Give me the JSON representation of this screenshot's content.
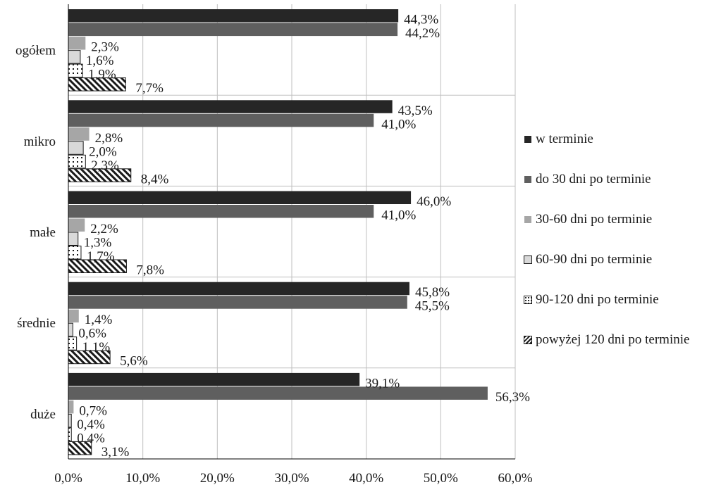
{
  "chart_data": {
    "type": "bar",
    "orientation": "horizontal",
    "categories": [
      "ogółem",
      "mikro",
      "małe",
      "średnie",
      "duże"
    ],
    "series": [
      {
        "name": "w terminie",
        "values": [
          44.3,
          43.5,
          46.0,
          45.8,
          39.1
        ],
        "labels": [
          "44,3%",
          "43,5%",
          "46,0%",
          "45,8%",
          "39,1%"
        ],
        "color": "#262626",
        "pattern": "solid"
      },
      {
        "name": "do 30 dni po terminie",
        "values": [
          44.2,
          41.0,
          41.0,
          45.5,
          56.3
        ],
        "labels": [
          "44,2%",
          "41,0%",
          "41,0%",
          "45,5%",
          "56,3%"
        ],
        "color": "#5f5f5f",
        "pattern": "solid"
      },
      {
        "name": "30-60 dni po terminie",
        "values": [
          2.3,
          2.8,
          2.2,
          1.4,
          0.7
        ],
        "labels": [
          "2,3%",
          "2,8%",
          "2,2%",
          "1,4%",
          "0,7%"
        ],
        "color": "#a6a6a6",
        "pattern": "solid"
      },
      {
        "name": "60-90 dni po terminie",
        "values": [
          1.6,
          2.0,
          1.3,
          0.6,
          0.4
        ],
        "labels": [
          "1,6%",
          "2,0%",
          "1,3%",
          "0,6%",
          "0,4%"
        ],
        "color": "#d9d9d9",
        "pattern": "solid"
      },
      {
        "name": "90-120 dni po terminie",
        "values": [
          1.9,
          2.3,
          1.7,
          1.1,
          0.4
        ],
        "labels": [
          "1,9%",
          "2,3%",
          "1,7%",
          "1,1%",
          "0,4%"
        ],
        "color": "#ffffff",
        "pattern": "dots"
      },
      {
        "name": "powyżej 120 dni po terminie",
        "values": [
          7.7,
          8.4,
          7.8,
          5.6,
          3.1
        ],
        "labels": [
          "7,7%",
          "8,4%",
          "7,8%",
          "5,6%",
          "3,1%"
        ],
        "color": "#1a1a1a",
        "pattern": "diagonal"
      }
    ],
    "xlim": [
      0,
      60
    ],
    "x_ticks": [
      0,
      10,
      20,
      30,
      40,
      50,
      60
    ],
    "x_tick_labels": [
      "0,0%",
      "10,0%",
      "20,0%",
      "30,0%",
      "40,0%",
      "50,0%",
      "60,0%"
    ],
    "grid": true,
    "legend_position": "right",
    "title": "",
    "xlabel": "",
    "ylabel": ""
  }
}
